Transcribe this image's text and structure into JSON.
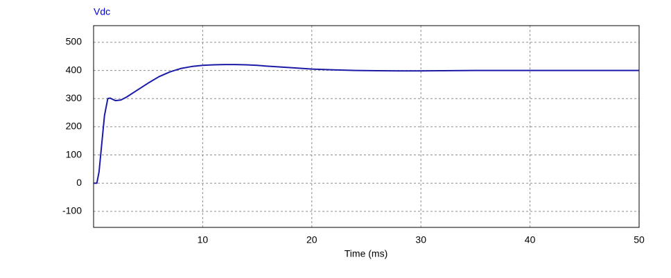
{
  "chart_data": {
    "type": "line",
    "title": "Vdc",
    "x_label": "Time (ms)",
    "x": [
      0,
      0.3,
      0.5,
      0.8,
      1.0,
      1.3,
      1.5,
      2.0,
      2.5,
      3,
      4,
      5,
      6,
      7,
      8,
      9,
      10,
      11,
      12,
      13,
      14,
      15,
      16,
      18,
      20,
      22,
      24,
      26,
      28,
      30,
      32,
      35,
      40,
      45,
      50
    ],
    "series": [
      {
        "name": "Vdc",
        "color": "#1a1aa8",
        "values": [
          0,
          0,
          40,
          160,
          240,
          300,
          302,
          293,
          295,
          305,
          330,
          355,
          378,
          395,
          407,
          414,
          418,
          420,
          421,
          421,
          420,
          418,
          415,
          410,
          405,
          402,
          400,
          399,
          398.5,
          398.5,
          399,
          400,
          400,
          400,
          400
        ]
      }
    ],
    "xlim": [
      0,
      50
    ],
    "xticks": [
      10,
      20,
      30,
      40,
      50
    ],
    "ylim": [
      -157,
      559
    ],
    "yticks": [
      -100,
      0,
      100,
      200,
      300,
      400,
      500
    ],
    "grid": true
  }
}
